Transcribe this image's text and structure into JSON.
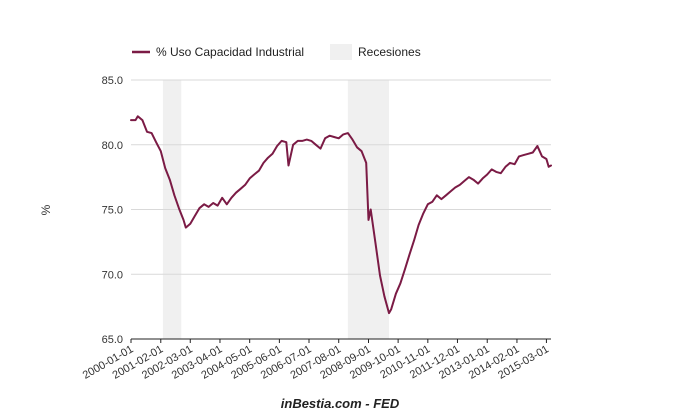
{
  "chart_data": {
    "type": "line",
    "ylabel": "%",
    "ylim": [
      65.0,
      85.0
    ],
    "y_ticks": [
      "85.0",
      "80.0",
      "75.0",
      "70.0",
      "65.0"
    ],
    "y_tick_values": [
      85,
      80,
      75,
      70,
      65
    ],
    "x_tick_labels": [
      "2000-01-01",
      "2001-02-01",
      "2002-03-01",
      "2003-04-01",
      "2004-05-01",
      "2005-06-01",
      "2006-07-01",
      "2007-08-01",
      "2008-09-01",
      "2009-10-01",
      "2010-11-01",
      "2011-12-01",
      "2013-01-01",
      "2014-02-01",
      "2015-03-01"
    ],
    "xlim": [
      "2000-01-01",
      "2015-05-01"
    ],
    "grid": true,
    "legend_position": "top-left",
    "legend": {
      "series_label": "% Uso Capacidad Industrial",
      "recession_label": "Recesiones"
    },
    "series": [
      {
        "name": "% Uso Capacidad Industrial",
        "color": "#7b1b45",
        "points": [
          [
            "2000-01-01",
            81.9
          ],
          [
            "2000-03-01",
            81.9
          ],
          [
            "2000-04-01",
            82.2
          ],
          [
            "2000-06-01",
            81.9
          ],
          [
            "2000-08-01",
            81.0
          ],
          [
            "2000-10-01",
            80.9
          ],
          [
            "2000-12-01",
            80.2
          ],
          [
            "2001-02-01",
            79.5
          ],
          [
            "2001-04-01",
            78.2
          ],
          [
            "2001-06-01",
            77.3
          ],
          [
            "2001-08-01",
            76.1
          ],
          [
            "2001-10-01",
            75.1
          ],
          [
            "2001-12-01",
            74.2
          ],
          [
            "2002-01-01",
            73.6
          ],
          [
            "2002-03-01",
            73.9
          ],
          [
            "2002-05-01",
            74.5
          ],
          [
            "2002-07-01",
            75.1
          ],
          [
            "2002-09-01",
            75.4
          ],
          [
            "2002-11-01",
            75.2
          ],
          [
            "2003-01-01",
            75.5
          ],
          [
            "2003-03-01",
            75.3
          ],
          [
            "2003-05-01",
            75.9
          ],
          [
            "2003-07-01",
            75.4
          ],
          [
            "2003-09-01",
            75.9
          ],
          [
            "2003-11-01",
            76.3
          ],
          [
            "2004-01-01",
            76.6
          ],
          [
            "2004-03-01",
            76.9
          ],
          [
            "2004-05-01",
            77.4
          ],
          [
            "2004-07-01",
            77.7
          ],
          [
            "2004-09-01",
            78.0
          ],
          [
            "2004-11-01",
            78.6
          ],
          [
            "2005-01-01",
            79.0
          ],
          [
            "2005-03-01",
            79.3
          ],
          [
            "2005-05-01",
            79.9
          ],
          [
            "2005-07-01",
            80.3
          ],
          [
            "2005-09-01",
            80.2
          ],
          [
            "2005-10-01",
            78.4
          ],
          [
            "2005-12-01",
            80.0
          ],
          [
            "2006-02-01",
            80.3
          ],
          [
            "2006-04-01",
            80.3
          ],
          [
            "2006-06-01",
            80.4
          ],
          [
            "2006-08-01",
            80.3
          ],
          [
            "2006-10-01",
            80.0
          ],
          [
            "2006-12-01",
            79.7
          ],
          [
            "2007-02-01",
            80.5
          ],
          [
            "2007-04-01",
            80.7
          ],
          [
            "2007-06-01",
            80.6
          ],
          [
            "2007-08-01",
            80.5
          ],
          [
            "2007-10-01",
            80.8
          ],
          [
            "2007-12-01",
            80.9
          ],
          [
            "2008-02-01",
            80.4
          ],
          [
            "2008-04-01",
            79.8
          ],
          [
            "2008-06-01",
            79.5
          ],
          [
            "2008-08-01",
            78.6
          ],
          [
            "2008-09-01",
            74.2
          ],
          [
            "2008-10-01",
            75.0
          ],
          [
            "2008-12-01",
            72.5
          ],
          [
            "2009-02-01",
            69.9
          ],
          [
            "2009-04-01",
            68.3
          ],
          [
            "2009-06-01",
            67.0
          ],
          [
            "2009-07-01",
            67.3
          ],
          [
            "2009-09-01",
            68.5
          ],
          [
            "2009-11-01",
            69.3
          ],
          [
            "2010-01-01",
            70.4
          ],
          [
            "2010-03-01",
            71.5
          ],
          [
            "2010-05-01",
            72.6
          ],
          [
            "2010-07-01",
            73.8
          ],
          [
            "2010-09-01",
            74.7
          ],
          [
            "2010-11-01",
            75.4
          ],
          [
            "2011-01-01",
            75.6
          ],
          [
            "2011-03-01",
            76.1
          ],
          [
            "2011-05-01",
            75.8
          ],
          [
            "2011-07-01",
            76.1
          ],
          [
            "2011-09-01",
            76.4
          ],
          [
            "2011-11-01",
            76.7
          ],
          [
            "2012-01-01",
            76.9
          ],
          [
            "2012-03-01",
            77.2
          ],
          [
            "2012-05-01",
            77.5
          ],
          [
            "2012-07-01",
            77.3
          ],
          [
            "2012-09-01",
            77.0
          ],
          [
            "2012-11-01",
            77.4
          ],
          [
            "2013-01-01",
            77.7
          ],
          [
            "2013-03-01",
            78.1
          ],
          [
            "2013-05-01",
            77.9
          ],
          [
            "2013-07-01",
            77.8
          ],
          [
            "2013-09-01",
            78.3
          ],
          [
            "2013-11-01",
            78.6
          ],
          [
            "2014-01-01",
            78.5
          ],
          [
            "2014-03-01",
            79.1
          ],
          [
            "2014-05-01",
            79.2
          ],
          [
            "2014-07-01",
            79.3
          ],
          [
            "2014-09-01",
            79.4
          ],
          [
            "2014-11-01",
            79.9
          ],
          [
            "2014-12-01",
            79.5
          ],
          [
            "2015-01-01",
            79.1
          ],
          [
            "2015-03-01",
            78.9
          ],
          [
            "2015-04-01",
            78.3
          ],
          [
            "2015-05-01",
            78.4
          ]
        ]
      }
    ],
    "recessions": [
      {
        "start": "2001-03-01",
        "end": "2001-11-01"
      },
      {
        "start": "2007-12-01",
        "end": "2009-06-01"
      }
    ],
    "recession_color": "#f0f0f0",
    "grid_color": "#d9d9d9",
    "axis_color": "#222222"
  },
  "footer": {
    "source_text": "inBestia.com - FED"
  }
}
